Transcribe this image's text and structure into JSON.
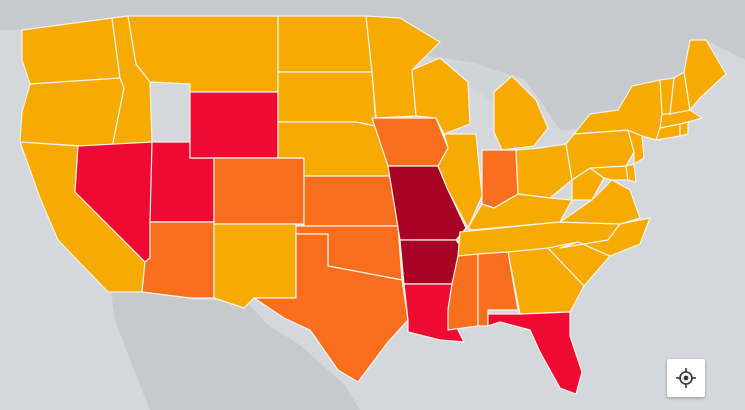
{
  "map": {
    "colors": {
      "ocean": "#d4d8dc",
      "land": "#c6cacd",
      "lake": "#cfd4d8",
      "tier_low": "#f7ab00",
      "tier_mid": "#fb6e1e",
      "tier_high": "#ee0a33",
      "tier_top": "#a80224"
    },
    "states": [
      {
        "name": "WA",
        "tier": "low"
      },
      {
        "name": "OR",
        "tier": "low"
      },
      {
        "name": "CA",
        "tier": "low"
      },
      {
        "name": "ID",
        "tier": "low"
      },
      {
        "name": "MT",
        "tier": "low"
      },
      {
        "name": "NV",
        "tier": "high"
      },
      {
        "name": "UT",
        "tier": "high"
      },
      {
        "name": "WY",
        "tier": "high"
      },
      {
        "name": "AZ",
        "tier": "mid"
      },
      {
        "name": "CO",
        "tier": "mid"
      },
      {
        "name": "NM",
        "tier": "low"
      },
      {
        "name": "ND",
        "tier": "low"
      },
      {
        "name": "SD",
        "tier": "low"
      },
      {
        "name": "NE",
        "tier": "low"
      },
      {
        "name": "KS",
        "tier": "mid"
      },
      {
        "name": "OK",
        "tier": "mid"
      },
      {
        "name": "TX",
        "tier": "mid"
      },
      {
        "name": "MN",
        "tier": "low"
      },
      {
        "name": "IA",
        "tier": "mid"
      },
      {
        "name": "MO",
        "tier": "top"
      },
      {
        "name": "AR",
        "tier": "top"
      },
      {
        "name": "LA",
        "tier": "high"
      },
      {
        "name": "WI",
        "tier": "low"
      },
      {
        "name": "IL",
        "tier": "low"
      },
      {
        "name": "MI",
        "tier": "low"
      },
      {
        "name": "IN",
        "tier": "mid"
      },
      {
        "name": "OH",
        "tier": "low"
      },
      {
        "name": "KY",
        "tier": "low"
      },
      {
        "name": "TN",
        "tier": "low"
      },
      {
        "name": "MS",
        "tier": "mid"
      },
      {
        "name": "AL",
        "tier": "mid"
      },
      {
        "name": "GA",
        "tier": "low"
      },
      {
        "name": "FL",
        "tier": "high"
      },
      {
        "name": "SC",
        "tier": "low"
      },
      {
        "name": "NC",
        "tier": "low"
      },
      {
        "name": "VA",
        "tier": "low"
      },
      {
        "name": "WV",
        "tier": "low"
      },
      {
        "name": "MD",
        "tier": "low"
      },
      {
        "name": "DE",
        "tier": "low"
      },
      {
        "name": "PA",
        "tier": "low"
      },
      {
        "name": "NJ",
        "tier": "low"
      },
      {
        "name": "NY",
        "tier": "low"
      },
      {
        "name": "CT",
        "tier": "low"
      },
      {
        "name": "RI",
        "tier": "low"
      },
      {
        "name": "MA",
        "tier": "low"
      },
      {
        "name": "VT",
        "tier": "low"
      },
      {
        "name": "NH",
        "tier": "low"
      },
      {
        "name": "ME",
        "tier": "low"
      }
    ]
  },
  "controls": {
    "locate_icon": "crosshair-icon"
  }
}
